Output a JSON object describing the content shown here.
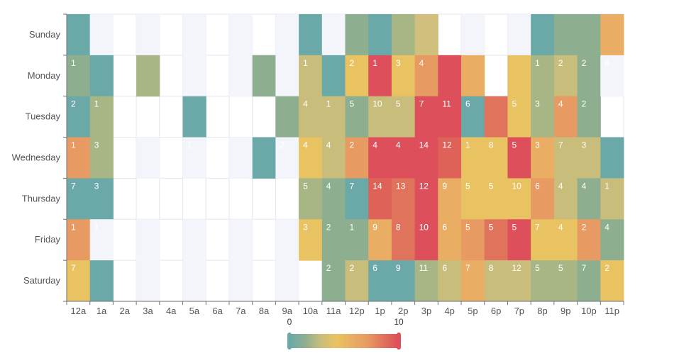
{
  "chart_data": {
    "type": "heatmap",
    "title": "",
    "hours": [
      "12a",
      "1a",
      "2a",
      "3a",
      "4a",
      "5a",
      "6a",
      "7a",
      "8a",
      "9a",
      "10a",
      "11a",
      "12p",
      "1p",
      "2p",
      "3p",
      "4p",
      "5p",
      "6p",
      "7p",
      "8p",
      "9p",
      "10p",
      "11p"
    ],
    "days": [
      "Sunday",
      "Monday",
      "Tuesday",
      "Wednesday",
      "Thursday",
      "Friday",
      "Saturday"
    ],
    "values": [
      [
        0,
        0,
        0,
        0,
        0,
        0,
        0,
        0,
        0,
        0,
        0,
        0,
        0,
        0,
        0,
        0,
        0,
        0,
        0,
        0,
        0,
        0,
        0,
        0
      ],
      [
        1,
        0,
        0,
        2,
        0,
        0,
        0,
        0,
        1,
        0,
        1,
        0,
        2,
        1,
        3,
        4,
        11,
        7,
        0,
        5,
        1,
        2,
        2,
        6
      ],
      [
        2,
        1,
        0,
        1,
        0,
        0,
        0,
        0,
        0,
        1,
        4,
        1,
        5,
        10,
        5,
        7,
        11,
        6,
        10,
        5,
        3,
        4,
        2,
        0
      ],
      [
        1,
        3,
        0,
        0,
        0,
        1,
        0,
        0,
        0,
        2,
        4,
        4,
        2,
        4,
        4,
        14,
        12,
        1,
        8,
        5,
        3,
        7,
        3,
        0
      ],
      [
        7,
        3,
        0,
        0,
        0,
        0,
        0,
        0,
        0,
        0,
        5,
        4,
        7,
        14,
        13,
        12,
        9,
        5,
        5,
        10,
        6,
        4,
        4,
        1
      ],
      [
        1,
        1,
        0,
        0,
        0,
        0,
        0,
        0,
        0,
        0,
        3,
        2,
        1,
        9,
        8,
        10,
        6,
        5,
        5,
        5,
        7,
        4,
        2,
        4
      ],
      [
        7,
        0,
        0,
        0,
        0,
        0,
        0,
        0,
        0,
        0,
        0,
        2,
        2,
        6,
        9,
        11,
        6,
        7,
        8,
        12,
        5,
        5,
        7,
        2
      ]
    ],
    "cell_colors": [
      [
        "#6ba9a8",
        "#f4f5fb",
        "#ffffff",
        "#f4f5fb",
        "#ffffff",
        "#f4f5fb",
        "#ffffff",
        "#f4f5fb",
        "#ffffff",
        "#f4f5fb",
        "#6ba9a8",
        "#f4f5fb",
        "#8eaf8f",
        "#6ba9a8",
        "#a7b684",
        "#d1c07d",
        "#ffffff",
        "#f4f5fb",
        "#ffffff",
        "#f4f5fb",
        "#6ba9a8",
        "#8eaf8f",
        "#8eaf8f",
        "#e9ae63"
      ],
      [
        "#8eaf8f",
        "#6ba9a8",
        "#ffffff",
        "#a7b684",
        "#ffffff",
        "#f4f5fb",
        "#ffffff",
        "#f4f5fb",
        "#8eaf8f",
        "#f4f5fb",
        "#c8bd7a",
        "#6ba9a8",
        "#e9c362",
        "#dc4f5b",
        "#e9c362",
        "#e79a62",
        "#dc4f5b",
        "#e9ae63",
        "#ffffff",
        "#e9c362",
        "#a7b684",
        "#c8bd7a",
        "#8eaf8f",
        "#f4f5fb"
      ],
      [
        "#6ba9a8",
        "#a7b684",
        "#ffffff",
        "#ffffff",
        "#ffffff",
        "#6ba9a8",
        "#ffffff",
        "#ffffff",
        "#ffffff",
        "#8eaf8f",
        "#c8bd7a",
        "#c8bd7a",
        "#8eaf8f",
        "#c8bd7a",
        "#c8bd7a",
        "#dc4f5b",
        "#dc4f5b",
        "#6ba9a8",
        "#e0735c",
        "#e9c362",
        "#a7b684",
        "#e79a62",
        "#8eaf8f",
        "#ffffff"
      ],
      [
        "#e79a62",
        "#a7b684",
        "#ffffff",
        "#f4f5fb",
        "#ffffff",
        "#f4f5fb",
        "#ffffff",
        "#f4f5fb",
        "#6ba9a8",
        "#f4f5fb",
        "#e9c362",
        "#c8bd7a",
        "#e79a62",
        "#dc4f5b",
        "#dc4f5b",
        "#dc4f5b",
        "#df6259",
        "#e9c362",
        "#e9c362",
        "#dc4f5b",
        "#e9ae63",
        "#c8bd7a",
        "#c8bd7a",
        "#6ba9a8"
      ],
      [
        "#6ba9a8",
        "#6ba9a8",
        "#ffffff",
        "#ffffff",
        "#ffffff",
        "#ffffff",
        "#ffffff",
        "#ffffff",
        "#ffffff",
        "#ffffff",
        "#a7b684",
        "#8eaf8f",
        "#6ba9a8",
        "#df6259",
        "#e0735c",
        "#dc4f5b",
        "#e9ae63",
        "#e9c362",
        "#e9c362",
        "#e9c362",
        "#e79a62",
        "#c8bd7a",
        "#8eaf8f",
        "#c8bd7a"
      ],
      [
        "#e79a62",
        "#f4f5fb",
        "#ffffff",
        "#f4f5fb",
        "#ffffff",
        "#f4f5fb",
        "#ffffff",
        "#f4f5fb",
        "#ffffff",
        "#f4f5fb",
        "#e9c362",
        "#8eaf8f",
        "#8eaf8f",
        "#e9ae63",
        "#e0735c",
        "#dc4f5b",
        "#e9ae63",
        "#e79a62",
        "#e0735c",
        "#dc4f5b",
        "#e9c362",
        "#e9c362",
        "#e79a62",
        "#8eaf8f"
      ],
      [
        "#e9c362",
        "#6ba9a8",
        "#ffffff",
        "#f4f5fb",
        "#ffffff",
        "#f4f5fb",
        "#ffffff",
        "#f4f5fb",
        "#ffffff",
        "#f4f5fb",
        "#ffffff",
        "#8eaf8f",
        "#c8bd7a",
        "#6ba9a8",
        "#6ba9a8",
        "#a7b684",
        "#c8bd7a",
        "#e9ae63",
        "#c8bd7a",
        "#c8bd7a",
        "#a7b684",
        "#a7b684",
        "#8eaf8f",
        "#e9c362"
      ]
    ],
    "shown_labels": [
      [
        false,
        false,
        false,
        false,
        false,
        false,
        false,
        false,
        false,
        false,
        false,
        false,
        false,
        false,
        false,
        false,
        false,
        false,
        false,
        false,
        false,
        false,
        false,
        false
      ],
      [
        true,
        false,
        false,
        false,
        false,
        false,
        false,
        false,
        false,
        false,
        true,
        false,
        true,
        true,
        true,
        true,
        false,
        false,
        false,
        false,
        true,
        true,
        true,
        true
      ],
      [
        true,
        true,
        false,
        true,
        false,
        false,
        false,
        false,
        false,
        false,
        true,
        true,
        true,
        true,
        true,
        true,
        true,
        true,
        false,
        true,
        true,
        true,
        true,
        false
      ],
      [
        true,
        true,
        false,
        false,
        false,
        true,
        false,
        false,
        false,
        true,
        true,
        true,
        true,
        true,
        true,
        true,
        true,
        true,
        true,
        true,
        true,
        true,
        true,
        false
      ],
      [
        true,
        true,
        false,
        false,
        false,
        false,
        false,
        false,
        false,
        false,
        true,
        true,
        true,
        true,
        true,
        true,
        true,
        true,
        true,
        true,
        true,
        true,
        true,
        true
      ],
      [
        true,
        true,
        false,
        false,
        false,
        false,
        false,
        false,
        false,
        false,
        true,
        true,
        true,
        true,
        true,
        true,
        true,
        true,
        true,
        true,
        true,
        true,
        true,
        true
      ],
      [
        true,
        false,
        false,
        false,
        false,
        false,
        false,
        false,
        false,
        false,
        false,
        true,
        true,
        true,
        true,
        true,
        true,
        true,
        true,
        true,
        true,
        true,
        true,
        true
      ]
    ],
    "visual_map": {
      "min": 0,
      "max": 10,
      "colors": [
        "#6ba9a8",
        "#8eaf8f",
        "#c8bd7a",
        "#e9c362",
        "#e9ae63",
        "#e79a62",
        "#e0735c",
        "#dc4f5b"
      ]
    }
  }
}
